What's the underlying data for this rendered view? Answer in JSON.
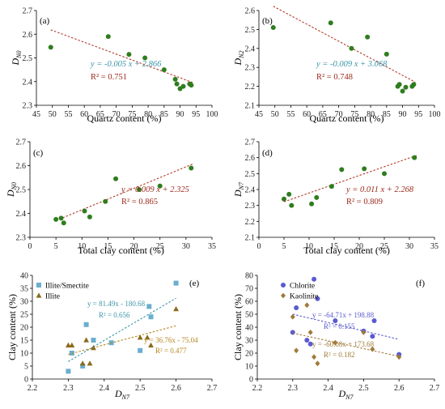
{
  "colors": {
    "green": "#2e7d1e",
    "trend_red": "#b23a28",
    "teal": "#3d96a8",
    "eqn_red": "#9b2a1a",
    "illite_smectite": "#6aaed0",
    "illite": "#8a6a1c",
    "illite_eqn": "#b5861c",
    "chlorite": "#5a5ad0",
    "kaolinite": "#a07a3a",
    "axis": "#000000"
  },
  "chart_data": [
    {
      "type": "scatter",
      "panel": "(a)",
      "xlabel": "Quartz content  (%)",
      "ylabel_main": "D",
      "ylabel_sub": "N0",
      "xlim": [
        45,
        100
      ],
      "ylim": [
        2.3,
        2.7
      ],
      "xticks": [
        "45",
        "50",
        "55",
        "60",
        "65",
        "70",
        "75",
        "80",
        "85",
        "90",
        "95",
        "100"
      ],
      "yticks": [
        "2.3",
        "2.4",
        "2.5",
        "2.6",
        "2.7"
      ],
      "points": {
        "x": [
          49.5,
          67.5,
          74,
          79,
          85,
          88.5,
          89,
          90,
          91,
          93,
          93.5
        ],
        "y": [
          2.545,
          2.59,
          2.515,
          2.5,
          2.45,
          2.41,
          2.39,
          2.37,
          2.38,
          2.39,
          2.385
        ]
      },
      "trend": {
        "slope": -0.005,
        "intercept": 2.866,
        "x_range": [
          49.5,
          94
        ]
      },
      "equation": "y = -0.005 x + 2.866",
      "r2": "R² = 0.751"
    },
    {
      "type": "scatter",
      "panel": "(b)",
      "xlabel": "Quartz content  (%)",
      "ylabel_main": "D",
      "ylabel_sub": "N2",
      "xlim": [
        45,
        100
      ],
      "ylim": [
        2.1,
        2.6
      ],
      "xticks": [
        "45",
        "50",
        "55",
        "60",
        "65",
        "70",
        "75",
        "80",
        "85",
        "90",
        "95",
        "100"
      ],
      "yticks": [
        "2.1",
        "2.2",
        "2.3",
        "2.4",
        "2.5",
        "2.6"
      ],
      "points": {
        "x": [
          49.5,
          67.5,
          74,
          79,
          85,
          88.5,
          89,
          90,
          91,
          93,
          93.5
        ],
        "y": [
          2.51,
          2.535,
          2.4,
          2.46,
          2.37,
          2.2,
          2.21,
          2.175,
          2.195,
          2.2,
          2.21
        ]
      },
      "trend": {
        "slope": -0.009,
        "intercept": 3.068,
        "x_range": [
          49.5,
          94
        ]
      },
      "equation": "y = -0.009 x + 3.068",
      "r2": "R² = 0.748"
    },
    {
      "type": "scatter",
      "panel": "(c)",
      "xlabel": "Total clay content  (%)",
      "ylabel_main": "D",
      "ylabel_sub": "N0",
      "xlim": [
        0,
        35
      ],
      "ylim": [
        2.3,
        2.7
      ],
      "xticks": [
        "0",
        "5",
        "10",
        "15",
        "20",
        "25",
        "30",
        "35"
      ],
      "yticks": [
        "2.3",
        "2.4",
        "2.5",
        "2.6",
        "2.7"
      ],
      "points": {
        "x": [
          5,
          6,
          6.5,
          10.5,
          11.5,
          14.5,
          16.5,
          21,
          25,
          31
        ],
        "y": [
          2.375,
          2.38,
          2.36,
          2.41,
          2.385,
          2.45,
          2.545,
          2.5,
          2.515,
          2.59
        ]
      },
      "trend": {
        "slope": 0.009,
        "intercept": 2.325,
        "x_range": [
          5,
          31.5
        ]
      },
      "equation": "y = 0.009 x + 2.325",
      "r2": "R² = 0.865"
    },
    {
      "type": "scatter",
      "panel": "(d)",
      "xlabel": "Total clay content  (%)",
      "ylabel_main": "D",
      "ylabel_sub": "N7",
      "xlim": [
        0,
        35
      ],
      "ylim": [
        2.1,
        2.7
      ],
      "xticks": [
        "0",
        "5",
        "10",
        "15",
        "20",
        "25",
        "30",
        "35"
      ],
      "yticks": [
        "2.1",
        "2.2",
        "2.3",
        "2.4",
        "2.5",
        "2.6",
        "2.7"
      ],
      "points": {
        "x": [
          5,
          6,
          6.5,
          10.5,
          11.5,
          14.5,
          16.5,
          21,
          25,
          31
        ],
        "y": [
          2.34,
          2.37,
          2.3,
          2.31,
          2.35,
          2.42,
          2.525,
          2.53,
          2.5,
          2.6
        ]
      },
      "trend": {
        "slope": 0.011,
        "intercept": 2.268,
        "x_range": [
          5,
          31.5
        ]
      },
      "equation": "y = 0.011 x + 2.268",
      "r2": "R² = 0.809"
    },
    {
      "type": "scatter",
      "panel": "(e)",
      "xlabel_main": "D",
      "xlabel_sub": "N7",
      "ylabel": "Clay content (%)",
      "xlim": [
        2.2,
        2.7
      ],
      "ylim": [
        0,
        40
      ],
      "xticks": [
        "2.2",
        "2.3",
        "2.4",
        "2.5",
        "2.6",
        "2.7"
      ],
      "yticks": [
        "0",
        "5",
        "10",
        "15",
        "20",
        "25",
        "30",
        "35",
        "40"
      ],
      "series": [
        {
          "name": "Illite/Smectite",
          "marker": "square",
          "x": [
            2.3,
            2.31,
            2.34,
            2.35,
            2.37,
            2.42,
            2.5,
            2.525,
            2.53,
            2.6
          ],
          "y": [
            3,
            10,
            5,
            21,
            15,
            14,
            11,
            28,
            24,
            37
          ],
          "trend": {
            "slope": 81.49,
            "intercept": -180.68,
            "x_range": [
              2.3,
              2.6
            ]
          },
          "equation": "y = 81.49x - 180.68",
          "r2": "R² = 0.656"
        },
        {
          "name": "Illite",
          "marker": "triangle",
          "x": [
            2.3,
            2.31,
            2.34,
            2.35,
            2.36,
            2.37,
            2.5,
            2.52,
            2.53,
            2.6
          ],
          "y": [
            13,
            13,
            6,
            15,
            6,
            12,
            16,
            16,
            13,
            27
          ],
          "trend": {
            "slope": 36.76,
            "intercept": -75.04,
            "x_range": [
              2.3,
              2.6
            ]
          },
          "equation": "y = 36.76x - 75.04",
          "r2": "R² = 0.477"
        }
      ]
    },
    {
      "type": "scatter",
      "panel": "(f)",
      "xlabel_main": "D",
      "xlabel_sub": "N7",
      "ylabel": "Clay content (%)",
      "xlim": [
        2.2,
        2.7
      ],
      "ylim": [
        0,
        80
      ],
      "xticks": [
        "2.2",
        "2.3",
        "2.4",
        "2.5",
        "2.6",
        "2.7"
      ],
      "yticks": [
        "0",
        "10",
        "20",
        "30",
        "40",
        "50",
        "60",
        "70",
        "80"
      ],
      "series": [
        {
          "name": "Chlorite",
          "marker": "circle",
          "x": [
            2.3,
            2.31,
            2.34,
            2.35,
            2.36,
            2.37,
            2.42,
            2.5,
            2.525,
            2.53,
            2.6
          ],
          "y": [
            36,
            55,
            30,
            27,
            77,
            62,
            45,
            37,
            33,
            45,
            19
          ],
          "trend": {
            "slope": -64.71,
            "intercept": 198.88,
            "x_range": [
              2.3,
              2.6
            ]
          },
          "equation": "y = -64.71x + 198.88",
          "r2": "R² = 0.155"
        },
        {
          "name": "Kaolinite",
          "marker": "diamond",
          "x": [
            2.3,
            2.31,
            2.34,
            2.35,
            2.36,
            2.37,
            2.42,
            2.5,
            2.525,
            2.6
          ],
          "y": [
            48,
            22,
            57,
            36,
            17,
            12,
            28,
            36,
            23,
            17
          ],
          "trend": {
            "slope": -60.08,
            "intercept": 173.68,
            "x_range": [
              2.3,
              2.6
            ]
          },
          "equation": "y = -60.08x + 173.68",
          "r2": "R² = 0.182"
        }
      ]
    }
  ]
}
